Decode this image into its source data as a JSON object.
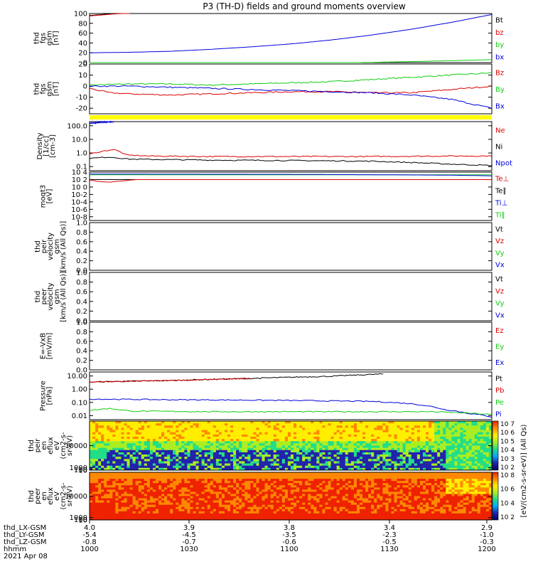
{
  "chart_data": {
    "type": "line",
    "title": "P3 (TH-D) fields and ground moments overview",
    "colors": {
      "black": "#000000",
      "red": "#dd0000",
      "green": "#11cc11",
      "blue": "#0000dd",
      "yellow": "#ffff00"
    },
    "panels": [
      {
        "id": "fgs_btotal",
        "ylabel": [
          "thd",
          "fgs",
          "gsm",
          "[nT]"
        ],
        "ylim": [
          0,
          100
        ],
        "yticks": [
          "0",
          "20",
          "40",
          "60",
          "80",
          "100"
        ],
        "yticks_values": [
          0,
          20,
          40,
          60,
          80,
          100
        ],
        "legend": [
          {
            "name": "Bt",
            "color": "#000000"
          },
          {
            "name": "bz",
            "color": "#dd0000"
          },
          {
            "name": "by",
            "color": "#11cc11"
          },
          {
            "name": "bx",
            "color": "#0000dd"
          }
        ],
        "series": [
          {
            "name": "Bt",
            "color": "#000000",
            "x": [
              0,
              0.06,
              0.1
            ],
            "y": [
              96,
              100,
              102
            ]
          },
          {
            "name": "bz",
            "color": "#dd0000",
            "x": [
              0,
              0.06,
              0.1
            ],
            "y": [
              95,
              99,
              101
            ]
          },
          {
            "name": "bx",
            "color": "#0000dd",
            "x": [
              0,
              0.1,
              0.2,
              0.3,
              0.4,
              0.5,
              0.6,
              0.7,
              0.8,
              0.9,
              1.0
            ],
            "y": [
              20,
              21,
              23,
              27,
              32,
              38,
              46,
              56,
              68,
              82,
              98
            ]
          },
          {
            "name": "by",
            "color": "#11cc11",
            "x": [
              0,
              0.2,
              0.4,
              0.6,
              0.8,
              0.9,
              1.0
            ],
            "y": [
              0,
              -2,
              -2,
              -1,
              2,
              4,
              6
            ]
          }
        ]
      },
      {
        "id": "fgs_components",
        "ylabel": [
          "thd",
          "fgs",
          "gsm",
          "[nT]"
        ],
        "ylim": [
          -25,
          20
        ],
        "yticks": [
          "-20",
          "-10",
          "0",
          "10",
          "20"
        ],
        "yticks_values": [
          -20,
          -10,
          0,
          10,
          20
        ],
        "legend": [
          {
            "name": "Bz",
            "color": "#dd0000"
          },
          {
            "name": "By",
            "color": "#11cc11"
          },
          {
            "name": "Bx",
            "color": "#0000dd"
          }
        ],
        "series": [
          {
            "name": "By",
            "color": "#11cc11",
            "x": [
              0,
              0.1,
              0.2,
              0.3,
              0.4,
              0.5,
              0.6,
              0.7,
              0.8,
              0.9,
              1.0
            ],
            "y": [
              1,
              2,
              2,
              1,
              2,
              3,
              4,
              6,
              8,
              10,
              12
            ]
          },
          {
            "name": "Bz",
            "color": "#dd0000",
            "x": [
              0,
              0.05,
              0.1,
              0.2,
              0.3,
              0.4,
              0.5,
              0.6,
              0.7,
              0.8,
              0.9,
              1.0
            ],
            "y": [
              -2,
              -6,
              -7,
              -8,
              -7,
              -6,
              -5,
              -5,
              -6,
              -6,
              -3,
              0
            ]
          },
          {
            "name": "Bx",
            "color": "#0000dd",
            "x": [
              0,
              0.1,
              0.2,
              0.3,
              0.4,
              0.5,
              0.6,
              0.7,
              0.8,
              0.9,
              1.0
            ],
            "y": [
              0,
              0,
              -1,
              -2,
              -3,
              -4,
              -5,
              -6,
              -8,
              -12,
              -20
            ]
          }
        ]
      },
      {
        "id": "quality_bar",
        "ylabel": [],
        "bar_color": "#ffff00"
      },
      {
        "id": "density",
        "ylabel": [
          "Density",
          "[1/cc]",
          "[cm-3]"
        ],
        "ylim": [
          0.05,
          200
        ],
        "log": true,
        "yticks": [
          "0.1",
          "1.0",
          "10.0",
          "100.0"
        ],
        "yticks_values": [
          0.1,
          1,
          10,
          100
        ],
        "legend": [
          {
            "name": "Ne",
            "color": "#dd0000"
          },
          {
            "name": "Ni",
            "color": "#000000"
          },
          {
            "name": "Npot",
            "color": "#0000dd"
          }
        ],
        "series": [
          {
            "name": "Npot",
            "color": "#0000dd",
            "x": [
              0,
              0.03,
              0.06
            ],
            "y": [
              150,
              180,
              200
            ]
          },
          {
            "name": "Ne",
            "color": "#dd0000",
            "x": [
              0,
              0.03,
              0.06,
              0.09,
              0.15,
              0.3,
              0.5,
              0.7,
              0.9,
              1.0
            ],
            "y": [
              0.8,
              1.3,
              1.8,
              0.7,
              0.6,
              0.55,
              0.55,
              0.55,
              0.6,
              0.6
            ]
          },
          {
            "name": "Ni",
            "color": "#000000",
            "x": [
              0,
              0.05,
              0.1,
              0.3,
              0.5,
              0.7,
              0.8,
              0.9,
              1.0
            ],
            "y": [
              0.4,
              0.5,
              0.35,
              0.3,
              0.28,
              0.25,
              0.2,
              0.15,
              0.12
            ]
          }
        ]
      },
      {
        "id": "temperature",
        "ylabel": [
          "moqt3",
          "[eV]"
        ],
        "ylim": [
          1e-09,
          10000
        ],
        "log": true,
        "yticks": [
          "10-8",
          "10-6",
          "10-4",
          "10-2",
          "10 0",
          "10 2",
          "10 4"
        ],
        "yticks_values": [
          1e-08,
          1e-06,
          0.0001,
          0.01,
          1,
          100,
          10000
        ],
        "legend": [
          {
            "name": "Te⊥",
            "color": "#dd0000"
          },
          {
            "name": "Te∥",
            "color": "#000000"
          },
          {
            "name": "Ti⊥",
            "color": "#0000dd"
          },
          {
            "name": "Ti∥",
            "color": "#11cc11"
          }
        ],
        "series": [
          {
            "name": "Ti∥",
            "color": "#11cc11",
            "x": [
              0,
              1.0
            ],
            "y": [
              2000,
              2000
            ]
          },
          {
            "name": "Ti⊥",
            "color": "#0000dd",
            "x": [
              0,
              0.5,
              0.9,
              1.0
            ],
            "y": [
              3000,
              2500,
              1500,
              1000
            ]
          },
          {
            "name": "Te∥",
            "color": "#000000",
            "x": [
              0,
              1.0
            ],
            "y": [
              100,
              100
            ]
          },
          {
            "name": "Te⊥",
            "color": "#dd0000",
            "x": [
              0,
              0.02,
              0.05,
              0.08,
              0.12,
              1.0
            ],
            "y": [
              80,
              30,
              20,
              40,
              100,
              100
            ]
          }
        ]
      },
      {
        "id": "peir_velocity",
        "ylabel": [
          "thd",
          "peir",
          "velocity",
          "gsm",
          "[km/s (All Qs)]"
        ],
        "ylim": [
          0,
          1
        ],
        "yticks": [
          "0.0",
          "0.2",
          "0.4",
          "0.6",
          "0.8",
          "1.0"
        ],
        "yticks_values": [
          0,
          0.2,
          0.4,
          0.6,
          0.8,
          1.0
        ],
        "legend": [
          {
            "name": "Vt",
            "color": "#000000"
          },
          {
            "name": "Vz",
            "color": "#dd0000"
          },
          {
            "name": "Vy",
            "color": "#11cc11"
          },
          {
            "name": "Vx",
            "color": "#0000dd"
          }
        ],
        "series": []
      },
      {
        "id": "peer_velocity",
        "ylabel": [
          "thd",
          "peer",
          "velocity",
          "gsm",
          "[km/s (All Qs)]"
        ],
        "ylim": [
          0,
          1
        ],
        "yticks": [
          "0.0",
          "0.2",
          "0.4",
          "0.6",
          "0.8",
          "1.0"
        ],
        "yticks_values": [
          0,
          0.2,
          0.4,
          0.6,
          0.8,
          1.0
        ],
        "legend": [
          {
            "name": "Vt",
            "color": "#000000"
          },
          {
            "name": "Vz",
            "color": "#dd0000"
          },
          {
            "name": "Vy",
            "color": "#11cc11"
          },
          {
            "name": "Vx",
            "color": "#0000dd"
          }
        ],
        "series": []
      },
      {
        "id": "efield",
        "ylabel": [
          "E=-VxB",
          "[mV/m]"
        ],
        "ylim": [
          0,
          1
        ],
        "yticks": [
          "0.0",
          "0.2",
          "0.4",
          "0.6",
          "0.8",
          "1.0"
        ],
        "yticks_values": [
          0,
          0.2,
          0.4,
          0.6,
          0.8,
          1.0
        ],
        "legend": [
          {
            "name": "Ez",
            "color": "#dd0000"
          },
          {
            "name": "Ey",
            "color": "#11cc11"
          },
          {
            "name": "Ex",
            "color": "#0000dd"
          }
        ],
        "series": []
      },
      {
        "id": "pressure",
        "ylabel": [
          "Pressure",
          "[nPa]"
        ],
        "ylim": [
          0.005,
          20
        ],
        "log": true,
        "yticks": [
          "0.01",
          "0.10",
          "1.00",
          "10.00"
        ],
        "yticks_values": [
          0.01,
          0.1,
          1,
          10
        ],
        "legend": [
          {
            "name": "Pt",
            "color": "#000000"
          },
          {
            "name": "Pb",
            "color": "#dd0000"
          },
          {
            "name": "Pe",
            "color": "#11cc11"
          },
          {
            "name": "Pi",
            "color": "#0000dd"
          }
        ],
        "series": [
          {
            "name": "Pt",
            "color": "#000000",
            "x": [
              0,
              0.2,
              0.4,
              0.6,
              0.73
            ],
            "y": [
              3.5,
              4.5,
              6.5,
              9.5,
              14
            ]
          },
          {
            "name": "Pb",
            "color": "#dd0000",
            "x": [
              0,
              0.2,
              0.4
            ],
            "y": [
              3.5,
              4.5,
              6.3
            ]
          },
          {
            "name": "Pi",
            "color": "#0000dd",
            "x": [
              0,
              0.2,
              0.4,
              0.6,
              0.7,
              0.8,
              0.88,
              0.94,
              1.0
            ],
            "y": [
              0.18,
              0.16,
              0.15,
              0.13,
              0.12,
              0.08,
              0.03,
              0.015,
              0.008
            ]
          },
          {
            "name": "Pe",
            "color": "#11cc11",
            "x": [
              0,
              0.05,
              0.1,
              0.3,
              0.5,
              0.7,
              0.85,
              0.95,
              1.0
            ],
            "y": [
              0.025,
              0.035,
              0.022,
              0.02,
              0.02,
              0.02,
              0.02,
              0.015,
              0.012
            ]
          }
        ]
      },
      {
        "id": "peir_en_eflux",
        "type": "heatmap",
        "ylabel": [
          "thd",
          "peir",
          "en",
          "eflux",
          "eV",
          "(cm2-s-",
          "sr-eV)"
        ],
        "yticks": [
          "10",
          "100",
          "1000",
          "10000"
        ],
        "yticks_values": [
          10,
          100,
          1000,
          10000
        ],
        "ylim": [
          6,
          20000
        ]
      },
      {
        "id": "peer_en_eflux",
        "type": "heatmap",
        "ylabel": [
          "thd",
          "peer",
          "en",
          "eflux",
          "eV",
          "(cm2-s-",
          "sr-eV)"
        ],
        "yticks": [
          "10",
          "100",
          "1000",
          "10000"
        ],
        "yticks_values": [
          10,
          100,
          1000,
          10000
        ],
        "ylim": [
          6,
          20000
        ]
      }
    ],
    "colorbar": {
      "label": "[eV/(cm2-s-sr-eV)] (All Qs)",
      "ticks_top": [
        "10 7",
        "10 6",
        "10 5",
        "10 4",
        "10 3",
        "10 2"
      ],
      "ticks_bottom": [
        "10 8",
        "10 6",
        "10 4",
        "10 2"
      ]
    },
    "xaxis": {
      "rows": [
        {
          "name": "thd_LX-GSM",
          "values": [
            "4.0",
            "3.9",
            "3.8",
            "3.4",
            "2.9"
          ]
        },
        {
          "name": "thd_LY-GSM",
          "values": [
            "-5.4",
            "-4.5",
            "-3.5",
            "-2.3",
            "-1.0"
          ]
        },
        {
          "name": "thd_LZ-GSM",
          "values": [
            "-0.8",
            "-0.7",
            "-0.6",
            "-0.5",
            "-0.3"
          ]
        },
        {
          "name": "hhmm",
          "values": [
            "1000",
            "1030",
            "1100",
            "1130",
            "1200"
          ]
        }
      ],
      "date": "2021 Apr 08"
    }
  }
}
